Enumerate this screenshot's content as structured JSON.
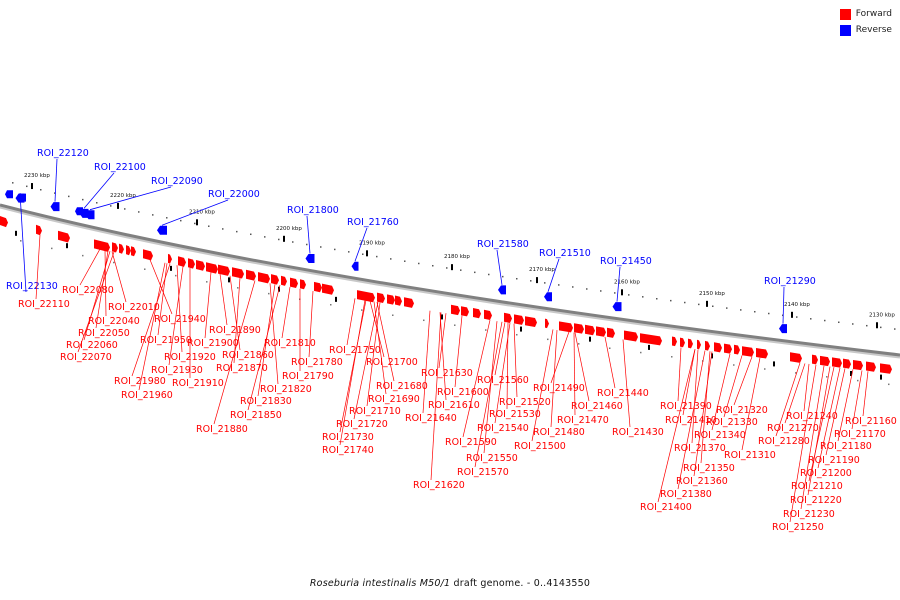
{
  "legend": {
    "forward_label": "Forward",
    "reverse_label": "Reverse"
  },
  "colors": {
    "forward": "#ff0000",
    "reverse": "#0000ff",
    "backbone": "#808080"
  },
  "caption": {
    "organism": "Roseburia intestinalis M50/1",
    "rest": "draft genome. - 0..4143550"
  },
  "ticks": [
    "2230 kbp",
    "2220 kbp",
    "2210 kbp",
    "2200 kbp",
    "2190 kbp",
    "2180 kbp",
    "2170 kbp",
    "2160 kbp",
    "2150 kbp",
    "2140 kbp",
    "2130 kbp"
  ],
  "reverse_genes": [
    "ROI_22120",
    "ROI_22100",
    "ROI_22090",
    "ROI_22000",
    "ROI_21800",
    "ROI_21760",
    "ROI_21580",
    "ROI_21510",
    "ROI_21450",
    "ROI_21290",
    "ROI_22130"
  ],
  "forward_genes": [
    "ROI_22110",
    "ROI_22080",
    "ROI_22010",
    "ROI_22040",
    "ROI_22050",
    "ROI_22060",
    "ROI_22070",
    "ROI_21940",
    "ROI_21950",
    "ROI_21920",
    "ROI_21930",
    "ROI_21980",
    "ROI_21910",
    "ROI_21960",
    "ROI_21890",
    "ROI_21900",
    "ROI_21860",
    "ROI_21870",
    "ROI_21810",
    "ROI_21820",
    "ROI_21830",
    "ROI_21850",
    "ROI_21880",
    "ROI_21790",
    "ROI_21780",
    "ROI_21750",
    "ROI_21700",
    "ROI_21680",
    "ROI_21690",
    "ROI_21710",
    "ROI_21720",
    "ROI_21730",
    "ROI_21740",
    "ROI_21630",
    "ROI_21600",
    "ROI_21610",
    "ROI_21640",
    "ROI_21620",
    "ROI_21560",
    "ROI_21520",
    "ROI_21530",
    "ROI_21540",
    "ROI_21590",
    "ROI_21550",
    "ROI_21570",
    "ROI_21490",
    "ROI_21460",
    "ROI_21470",
    "ROI_21480",
    "ROI_21500",
    "ROI_21440",
    "ROI_21430",
    "ROI_21390",
    "ROI_21410",
    "ROI_21370",
    "ROI_21350",
    "ROI_21360",
    "ROI_21380",
    "ROI_21400",
    "ROI_21320",
    "ROI_21330",
    "ROI_21340",
    "ROI_21310",
    "ROI_21240",
    "ROI_21270",
    "ROI_21280",
    "ROI_21160",
    "ROI_21170",
    "ROI_21180",
    "ROI_21190",
    "ROI_21200",
    "ROI_21210",
    "ROI_21220",
    "ROI_21230",
    "ROI_21250"
  ]
}
